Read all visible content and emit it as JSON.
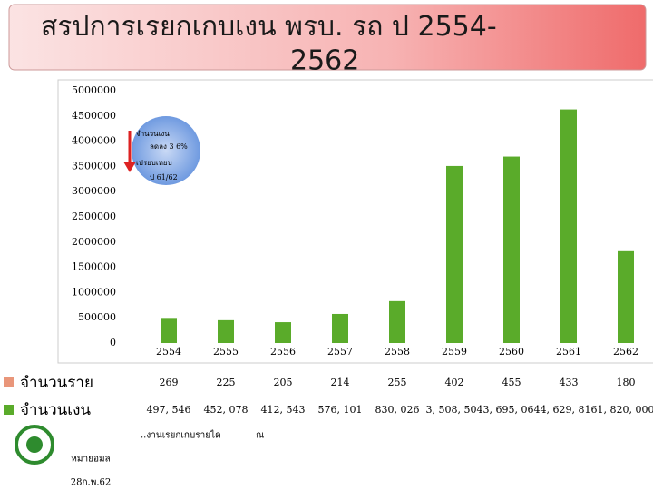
{
  "chart_data": {
    "type": "bar",
    "title": "สรปการเรยกเกบเงน พรบ. รถ ป 2554-2562",
    "categories": [
      "2554",
      "2555",
      "2556",
      "2557",
      "2558",
      "2559",
      "2560",
      "2561",
      "2562"
    ],
    "series": [
      {
        "name": "จำนวนราย",
        "color": "#e9967a",
        "values": [
          269,
          225,
          205,
          214,
          255,
          402,
          455,
          433,
          180
        ]
      },
      {
        "name": "จำนวนเงน",
        "color": "#5aab2a",
        "values": [
          497546,
          452078,
          412543,
          576101,
          830026,
          3508504,
          3695064,
          4629816,
          1820000
        ],
        "value_labels": [
          "497, 546",
          "452, 078",
          "412, 543",
          "576, 101",
          "830, 026",
          "3, 508, 504",
          "3, 695, 064",
          "4, 629, 816",
          "1, 820, 000"
        ]
      }
    ],
    "ylim": [
      0,
      5000000
    ],
    "yticks": [
      0,
      500000,
      1000000,
      1500000,
      2000000,
      2500000,
      3000000,
      3500000,
      4000000,
      4500000,
      5000000
    ],
    "annotation": [
      "จำนวนเงน",
      "ลดลง 3 6%",
      "เปรยบเทยบ",
      "ป 61/62"
    ],
    "footer": {
      "source": "หมายอมล",
      "date": "28ก.พ.62",
      "note": "..งานเรยกเกบรายได",
      "at": "ณ"
    }
  }
}
